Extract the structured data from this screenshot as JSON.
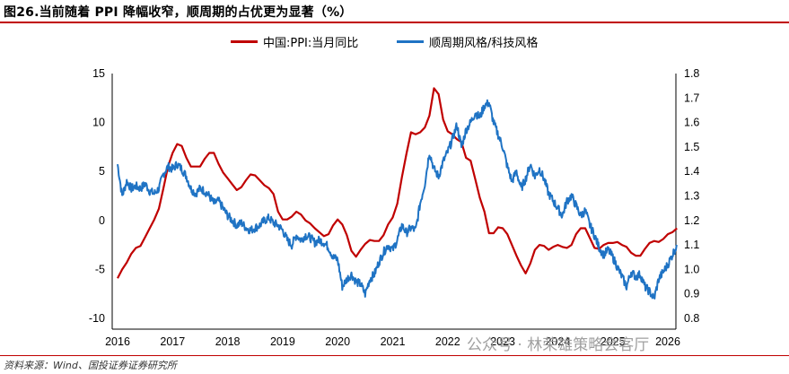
{
  "header": {
    "title": "图26.当前随着 PPI 降幅收窄，顺周期的占优更为显著（%）"
  },
  "footer": {
    "source": "资料来源：Wind、国投证券证券研究所"
  },
  "watermark": {
    "text": "公众号 · 林荣雄策略会客厅"
  },
  "colors": {
    "red": "#c00000",
    "blue": "#1f73c4",
    "accent_rule": "#c00000"
  },
  "chart_data": {
    "type": "line",
    "title": "",
    "xlabel": "",
    "ylabel": "",
    "legend_position": "top-center",
    "grid": false,
    "x_range": [
      "2016-01",
      "2026-03"
    ],
    "x_tick_labels": [
      "2016",
      "2017",
      "2018",
      "2019",
      "2020",
      "2021",
      "2022",
      "2023",
      "2024",
      "2025",
      "2026"
    ],
    "y_left": {
      "range": [
        -10,
        15
      ],
      "ticks": [
        "15",
        "10",
        "5",
        "0",
        "-5",
        "-10"
      ]
    },
    "y_right": {
      "range": [
        0.8,
        1.8
      ],
      "ticks": [
        "1.8",
        "1.7",
        "1.6",
        "1.5",
        "1.4",
        "1.3",
        "1.2",
        "1.1",
        "1.0",
        "0.9",
        "0.8"
      ]
    },
    "series": [
      {
        "name": "中国:PPI:当月同比",
        "axis": "left",
        "color": "#c00000",
        "points": [
          [
            "2016-01",
            -5.9
          ],
          [
            "2016-02",
            -5.0
          ],
          [
            "2016-03",
            -4.3
          ],
          [
            "2016-04",
            -3.4
          ],
          [
            "2016-05",
            -2.8
          ],
          [
            "2016-06",
            -2.6
          ],
          [
            "2016-07",
            -1.7
          ],
          [
            "2016-08",
            -0.8
          ],
          [
            "2016-09",
            0.1
          ],
          [
            "2016-10",
            1.2
          ],
          [
            "2016-11",
            3.3
          ],
          [
            "2016-12",
            5.5
          ],
          [
            "2017-01",
            6.9
          ],
          [
            "2017-02",
            7.8
          ],
          [
            "2017-03",
            7.6
          ],
          [
            "2017-04",
            6.4
          ],
          [
            "2017-05",
            5.5
          ],
          [
            "2017-06",
            5.5
          ],
          [
            "2017-07",
            5.5
          ],
          [
            "2017-08",
            6.3
          ],
          [
            "2017-09",
            6.9
          ],
          [
            "2017-10",
            6.9
          ],
          [
            "2017-11",
            5.8
          ],
          [
            "2017-12",
            4.9
          ],
          [
            "2018-01",
            4.3
          ],
          [
            "2018-02",
            3.7
          ],
          [
            "2018-03",
            3.1
          ],
          [
            "2018-04",
            3.4
          ],
          [
            "2018-05",
            4.1
          ],
          [
            "2018-06",
            4.7
          ],
          [
            "2018-07",
            4.6
          ],
          [
            "2018-08",
            4.1
          ],
          [
            "2018-09",
            3.6
          ],
          [
            "2018-10",
            3.3
          ],
          [
            "2018-11",
            2.7
          ],
          [
            "2018-12",
            0.9
          ],
          [
            "2019-01",
            0.1
          ],
          [
            "2019-02",
            0.1
          ],
          [
            "2019-03",
            0.4
          ],
          [
            "2019-04",
            0.9
          ],
          [
            "2019-05",
            0.6
          ],
          [
            "2019-06",
            0.0
          ],
          [
            "2019-07",
            -0.3
          ],
          [
            "2019-08",
            -0.8
          ],
          [
            "2019-09",
            -1.2
          ],
          [
            "2019-10",
            -1.6
          ],
          [
            "2019-11",
            -1.4
          ],
          [
            "2019-12",
            -0.5
          ],
          [
            "2020-01",
            0.1
          ],
          [
            "2020-02",
            -0.4
          ],
          [
            "2020-03",
            -1.5
          ],
          [
            "2020-04",
            -3.1
          ],
          [
            "2020-05",
            -3.7
          ],
          [
            "2020-06",
            -3.0
          ],
          [
            "2020-07",
            -2.4
          ],
          [
            "2020-08",
            -2.0
          ],
          [
            "2020-09",
            -2.1
          ],
          [
            "2020-10",
            -2.1
          ],
          [
            "2020-11",
            -1.5
          ],
          [
            "2020-12",
            -0.4
          ],
          [
            "2021-01",
            0.3
          ],
          [
            "2021-02",
            1.7
          ],
          [
            "2021-03",
            4.4
          ],
          [
            "2021-04",
            6.8
          ],
          [
            "2021-05",
            9.0
          ],
          [
            "2021-06",
            8.8
          ],
          [
            "2021-07",
            9.0
          ],
          [
            "2021-08",
            9.5
          ],
          [
            "2021-09",
            10.7
          ],
          [
            "2021-10",
            13.5
          ],
          [
            "2021-11",
            12.9
          ],
          [
            "2021-12",
            10.3
          ],
          [
            "2022-01",
            9.1
          ],
          [
            "2022-02",
            8.8
          ],
          [
            "2022-03",
            8.3
          ],
          [
            "2022-04",
            8.0
          ],
          [
            "2022-05",
            6.4
          ],
          [
            "2022-06",
            6.1
          ],
          [
            "2022-07",
            4.2
          ],
          [
            "2022-08",
            2.3
          ],
          [
            "2022-09",
            0.9
          ],
          [
            "2022-10",
            -1.3
          ],
          [
            "2022-11",
            -1.3
          ],
          [
            "2022-12",
            -0.7
          ],
          [
            "2023-01",
            -0.8
          ],
          [
            "2023-02",
            -1.4
          ],
          [
            "2023-03",
            -2.5
          ],
          [
            "2023-04",
            -3.6
          ],
          [
            "2023-05",
            -4.6
          ],
          [
            "2023-06",
            -5.4
          ],
          [
            "2023-07",
            -4.4
          ],
          [
            "2023-08",
            -3.0
          ],
          [
            "2023-09",
            -2.5
          ],
          [
            "2023-10",
            -2.6
          ],
          [
            "2023-11",
            -3.0
          ],
          [
            "2023-12",
            -2.7
          ],
          [
            "2024-01",
            -2.5
          ],
          [
            "2024-02",
            -2.7
          ],
          [
            "2024-03",
            -2.8
          ],
          [
            "2024-04",
            -2.5
          ],
          [
            "2024-05",
            -1.4
          ],
          [
            "2024-06",
            -0.8
          ],
          [
            "2024-07",
            -0.8
          ],
          [
            "2024-08",
            -1.8
          ],
          [
            "2024-09",
            -2.8
          ],
          [
            "2024-10",
            -2.9
          ],
          [
            "2024-11",
            -2.5
          ],
          [
            "2024-12",
            -2.3
          ],
          [
            "2025-01",
            -2.3
          ],
          [
            "2025-02",
            -2.2
          ],
          [
            "2025-03",
            -2.5
          ],
          [
            "2025-04",
            -2.7
          ],
          [
            "2025-05",
            -3.3
          ],
          [
            "2025-06",
            -3.6
          ],
          [
            "2025-07",
            -3.6
          ],
          [
            "2025-08",
            -2.9
          ],
          [
            "2025-09",
            -2.3
          ],
          [
            "2025-10",
            -2.1
          ],
          [
            "2025-11",
            -2.2
          ],
          [
            "2025-12",
            -1.9
          ],
          [
            "2026-01",
            -1.4
          ],
          [
            "2026-02",
            -1.2
          ],
          [
            "2026-03",
            -0.8
          ]
        ]
      },
      {
        "name": "顺周期风格/科技风格",
        "axis": "right",
        "color": "#1f73c4",
        "points": [
          [
            "2016-01",
            1.43
          ],
          [
            "2016-02",
            1.3
          ],
          [
            "2016-03",
            1.36
          ],
          [
            "2016-04",
            1.33
          ],
          [
            "2016-05",
            1.34
          ],
          [
            "2016-06",
            1.33
          ],
          [
            "2016-07",
            1.35
          ],
          [
            "2016-08",
            1.32
          ],
          [
            "2016-09",
            1.31
          ],
          [
            "2016-10",
            1.33
          ],
          [
            "2016-11",
            1.39
          ],
          [
            "2016-12",
            1.42
          ],
          [
            "2017-01",
            1.41
          ],
          [
            "2017-02",
            1.43
          ],
          [
            "2017-03",
            1.41
          ],
          [
            "2017-04",
            1.38
          ],
          [
            "2017-05",
            1.33
          ],
          [
            "2017-06",
            1.31
          ],
          [
            "2017-07",
            1.33
          ],
          [
            "2017-08",
            1.32
          ],
          [
            "2017-09",
            1.3
          ],
          [
            "2017-10",
            1.27
          ],
          [
            "2017-11",
            1.28
          ],
          [
            "2017-12",
            1.25
          ],
          [
            "2018-01",
            1.22
          ],
          [
            "2018-02",
            1.2
          ],
          [
            "2018-03",
            1.18
          ],
          [
            "2018-04",
            1.19
          ],
          [
            "2018-05",
            1.17
          ],
          [
            "2018-06",
            1.16
          ],
          [
            "2018-07",
            1.17
          ],
          [
            "2018-08",
            1.18
          ],
          [
            "2018-09",
            1.2
          ],
          [
            "2018-10",
            1.21
          ],
          [
            "2018-11",
            1.19
          ],
          [
            "2018-12",
            1.18
          ],
          [
            "2019-01",
            1.16
          ],
          [
            "2019-02",
            1.12
          ],
          [
            "2019-03",
            1.1
          ],
          [
            "2019-04",
            1.14
          ],
          [
            "2019-05",
            1.12
          ],
          [
            "2019-06",
            1.14
          ],
          [
            "2019-07",
            1.13
          ],
          [
            "2019-08",
            1.11
          ],
          [
            "2019-09",
            1.12
          ],
          [
            "2019-10",
            1.11
          ],
          [
            "2019-11",
            1.09
          ],
          [
            "2019-12",
            1.05
          ],
          [
            "2020-01",
            1.04
          ],
          [
            "2020-02",
            0.93
          ],
          [
            "2020-03",
            0.96
          ],
          [
            "2020-04",
            0.98
          ],
          [
            "2020-05",
            0.95
          ],
          [
            "2020-06",
            0.94
          ],
          [
            "2020-07",
            0.9
          ],
          [
            "2020-08",
            0.96
          ],
          [
            "2020-09",
            0.98
          ],
          [
            "2020-10",
            1.03
          ],
          [
            "2020-11",
            1.07
          ],
          [
            "2020-12",
            1.1
          ],
          [
            "2021-01",
            1.08
          ],
          [
            "2021-02",
            1.12
          ],
          [
            "2021-03",
            1.18
          ],
          [
            "2021-04",
            1.15
          ],
          [
            "2021-05",
            1.17
          ],
          [
            "2021-06",
            1.16
          ],
          [
            "2021-07",
            1.27
          ],
          [
            "2021-08",
            1.35
          ],
          [
            "2021-09",
            1.48
          ],
          [
            "2021-10",
            1.41
          ],
          [
            "2021-11",
            1.38
          ],
          [
            "2021-12",
            1.44
          ],
          [
            "2022-01",
            1.48
          ],
          [
            "2022-02",
            1.53
          ],
          [
            "2022-03",
            1.59
          ],
          [
            "2022-04",
            1.5
          ],
          [
            "2022-05",
            1.57
          ],
          [
            "2022-06",
            1.6
          ],
          [
            "2022-07",
            1.64
          ],
          [
            "2022-08",
            1.62
          ],
          [
            "2022-09",
            1.67
          ],
          [
            "2022-10",
            1.68
          ],
          [
            "2022-11",
            1.6
          ],
          [
            "2022-12",
            1.55
          ],
          [
            "2023-01",
            1.5
          ],
          [
            "2023-02",
            1.42
          ],
          [
            "2023-03",
            1.36
          ],
          [
            "2023-04",
            1.4
          ],
          [
            "2023-05",
            1.33
          ],
          [
            "2023-06",
            1.37
          ],
          [
            "2023-07",
            1.43
          ],
          [
            "2023-08",
            1.38
          ],
          [
            "2023-09",
            1.41
          ],
          [
            "2023-10",
            1.37
          ],
          [
            "2023-11",
            1.31
          ],
          [
            "2023-12",
            1.28
          ],
          [
            "2024-01",
            1.25
          ],
          [
            "2024-02",
            1.22
          ],
          [
            "2024-03",
            1.28
          ],
          [
            "2024-04",
            1.3
          ],
          [
            "2024-05",
            1.26
          ],
          [
            "2024-06",
            1.22
          ],
          [
            "2024-07",
            1.24
          ],
          [
            "2024-08",
            1.18
          ],
          [
            "2024-09",
            1.14
          ],
          [
            "2024-10",
            1.09
          ],
          [
            "2024-11",
            1.06
          ],
          [
            "2024-12",
            1.08
          ],
          [
            "2025-01",
            1.05
          ],
          [
            "2025-02",
            1.01
          ],
          [
            "2025-03",
            0.97
          ],
          [
            "2025-04",
            0.93
          ],
          [
            "2025-05",
            0.99
          ],
          [
            "2025-06",
            0.97
          ],
          [
            "2025-07",
            0.98
          ],
          [
            "2025-08",
            0.93
          ],
          [
            "2025-09",
            0.91
          ],
          [
            "2025-10",
            0.88
          ],
          [
            "2025-11",
            0.96
          ],
          [
            "2025-12",
            0.99
          ],
          [
            "2026-01",
            1.02
          ],
          [
            "2026-02",
            1.06
          ],
          [
            "2026-03",
            1.1
          ]
        ]
      }
    ]
  }
}
